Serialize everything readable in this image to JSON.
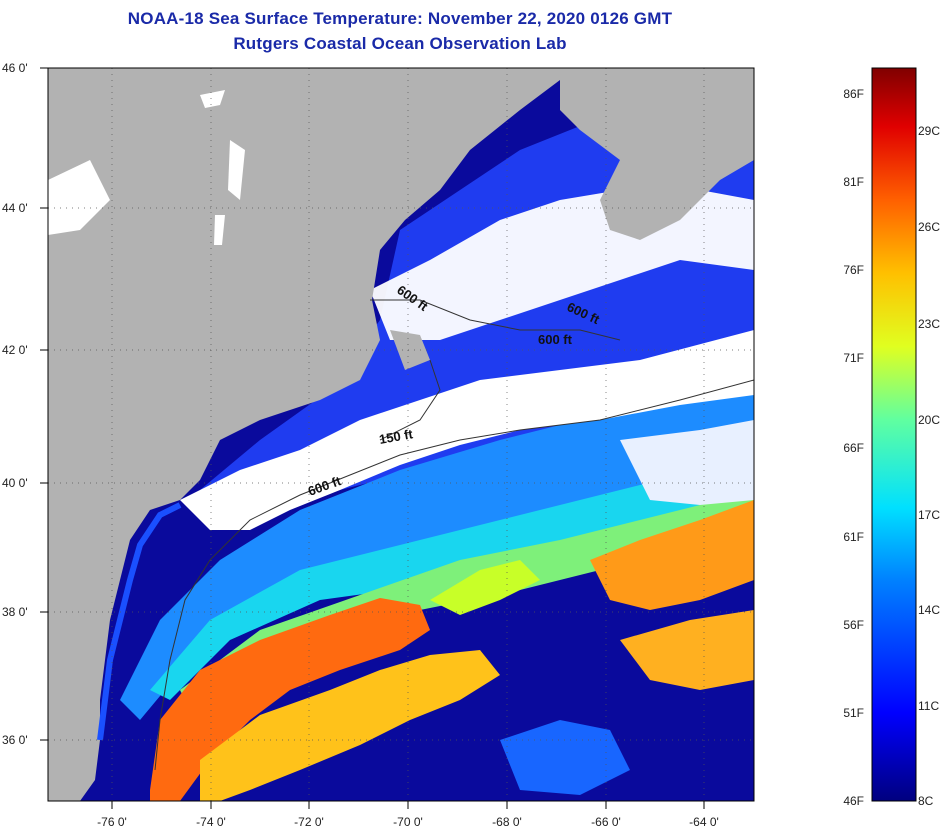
{
  "title": "NOAA-18 Sea Surface Temperature:  November 22, 2020 0126 GMT",
  "subtitle": "Rutgers Coastal Ocean Observation Lab",
  "axes": {
    "lat_labels": [
      "46 0'",
      "44 0'",
      "42 0'",
      "40 0'",
      "38 0'",
      "36 0'"
    ],
    "lon_labels": [
      "-76 0'",
      "-74 0'",
      "-72 0'",
      "-70 0'",
      "-68 0'",
      "-66 0'",
      "-64 0'"
    ]
  },
  "isobaths": [
    "600 ft",
    "600 ft",
    "600 ft",
    "150 ft",
    "600 ft"
  ],
  "colorbar": {
    "fahrenheit": [
      "86F",
      "81F",
      "76F",
      "71F",
      "66F",
      "61F",
      "56F",
      "51F",
      "46F"
    ],
    "celsius": [
      "29C",
      "26C",
      "23C",
      "20C",
      "17C",
      "14C",
      "11C",
      "8C"
    ]
  },
  "colors": {
    "title": "#1a2aa8",
    "land": "#b2b2b2",
    "cloud": "#ffffff"
  }
}
